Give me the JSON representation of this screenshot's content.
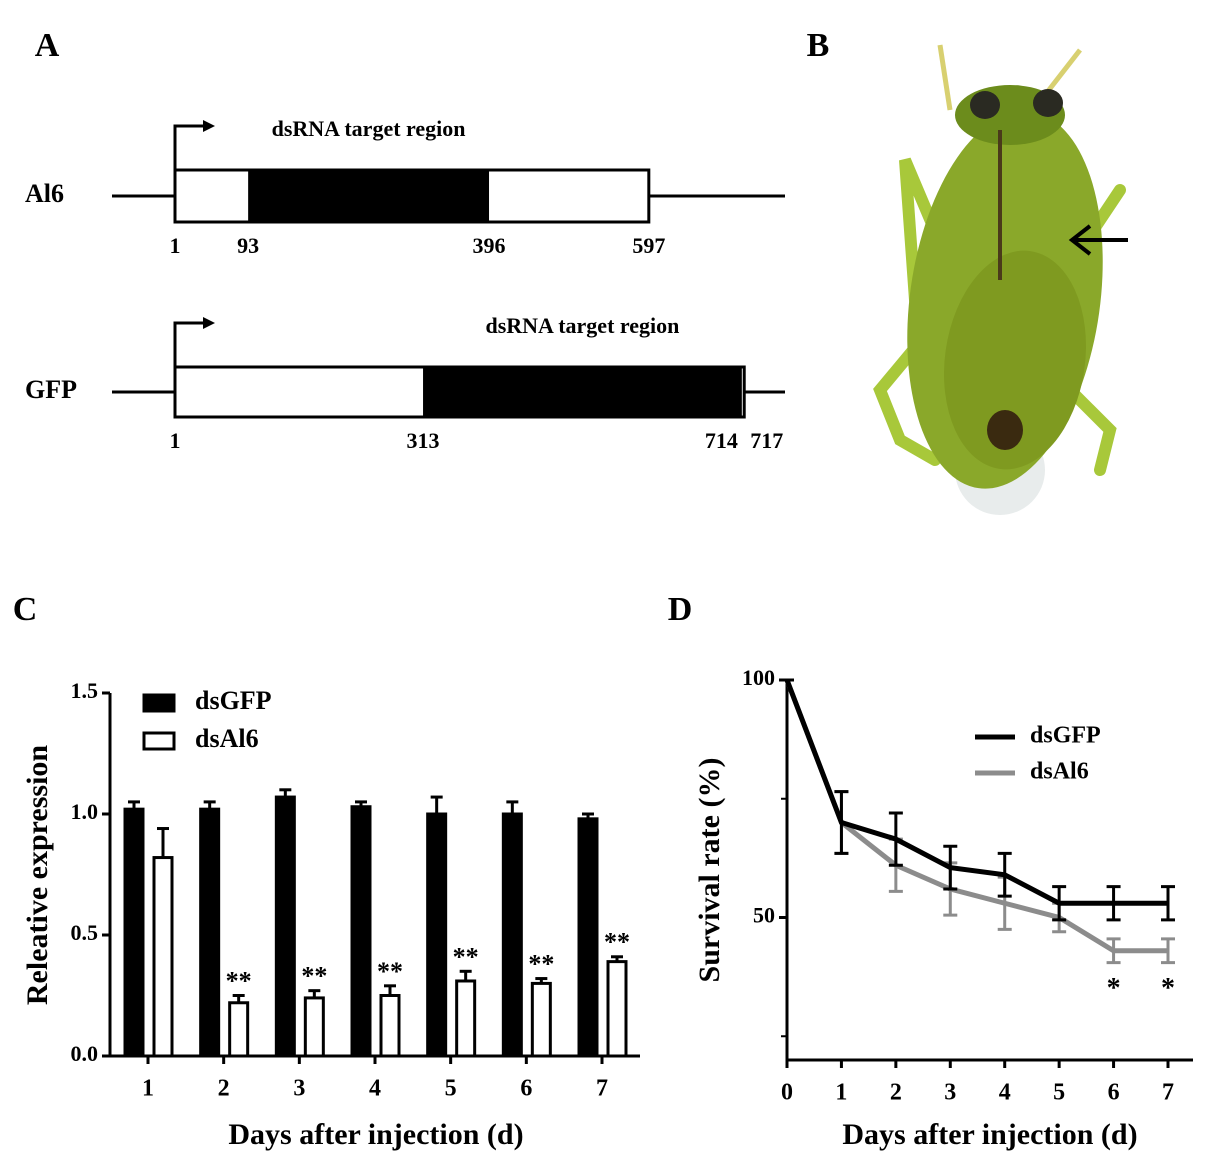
{
  "panels": [
    "A",
    "B",
    "C",
    "D"
  ],
  "diagram": {
    "genes": [
      {
        "name": "Al6",
        "caption": "dsRNA target region",
        "start": 1,
        "target_start": 93,
        "target_end": 396,
        "end": 597
      },
      {
        "name": "GFP",
        "caption": "dsRNA target region",
        "start": 1,
        "target_start": 313,
        "target_end": 714,
        "end": 717
      }
    ]
  },
  "chart_data": [
    {
      "type": "bar",
      "xlabel": "Days after injection (d)",
      "ylabel": "Releative expression",
      "categories": [
        "1",
        "2",
        "3",
        "4",
        "5",
        "6",
        "7"
      ],
      "series": [
        {
          "name": "dsGFP",
          "color": "#000000",
          "values": [
            1.02,
            1.02,
            1.07,
            1.03,
            1.0,
            1.0,
            0.98
          ],
          "errors": [
            0.03,
            0.03,
            0.03,
            0.02,
            0.07,
            0.05,
            0.02
          ]
        },
        {
          "name": "dsAl6",
          "color": "#ffffff",
          "values": [
            0.82,
            0.22,
            0.24,
            0.25,
            0.31,
            0.3,
            0.39
          ],
          "errors": [
            0.12,
            0.03,
            0.03,
            0.04,
            0.04,
            0.02,
            0.02
          ],
          "significance": [
            null,
            "**",
            "**",
            "**",
            "**",
            "**",
            "**"
          ]
        }
      ],
      "ylim": [
        0,
        1.5
      ],
      "yticks": [
        {
          "value": 0,
          "label": "0.0"
        },
        0.5,
        {
          "value": 1,
          "label": "1.0"
        },
        1.5
      ],
      "legend": "upper left"
    },
    {
      "type": "line",
      "xlabel": "Days after injection (d)",
      "ylabel": "Survival rate (%)",
      "x": [
        0,
        1,
        2,
        3,
        4,
        5,
        6,
        7
      ],
      "series": [
        {
          "name": "dsGFP",
          "color": "#000000",
          "values": [
            100,
            70,
            66.5,
            60.5,
            59,
            53,
            53,
            53
          ],
          "errors": [
            0,
            6.5,
            5.5,
            4.5,
            4.5,
            3.5,
            3.5,
            3.5
          ]
        },
        {
          "name": "dsAl6",
          "color": "#8c8c8c",
          "values": [
            100,
            70,
            61,
            56,
            53,
            50,
            43,
            43
          ],
          "errors": [
            0,
            6.5,
            5.5,
            5.5,
            5.5,
            3,
            2.5,
            2.5
          ],
          "significance": [
            null,
            null,
            null,
            null,
            null,
            null,
            "*",
            "*"
          ]
        }
      ],
      "xlim": [
        0,
        7
      ],
      "xticks": [
        0,
        1,
        2,
        3,
        4,
        5,
        6,
        7
      ],
      "ylim": [
        20,
        100
      ],
      "yticks": [
        50,
        100
      ],
      "yminor": [
        25,
        75
      ],
      "legend": "upper right"
    }
  ]
}
